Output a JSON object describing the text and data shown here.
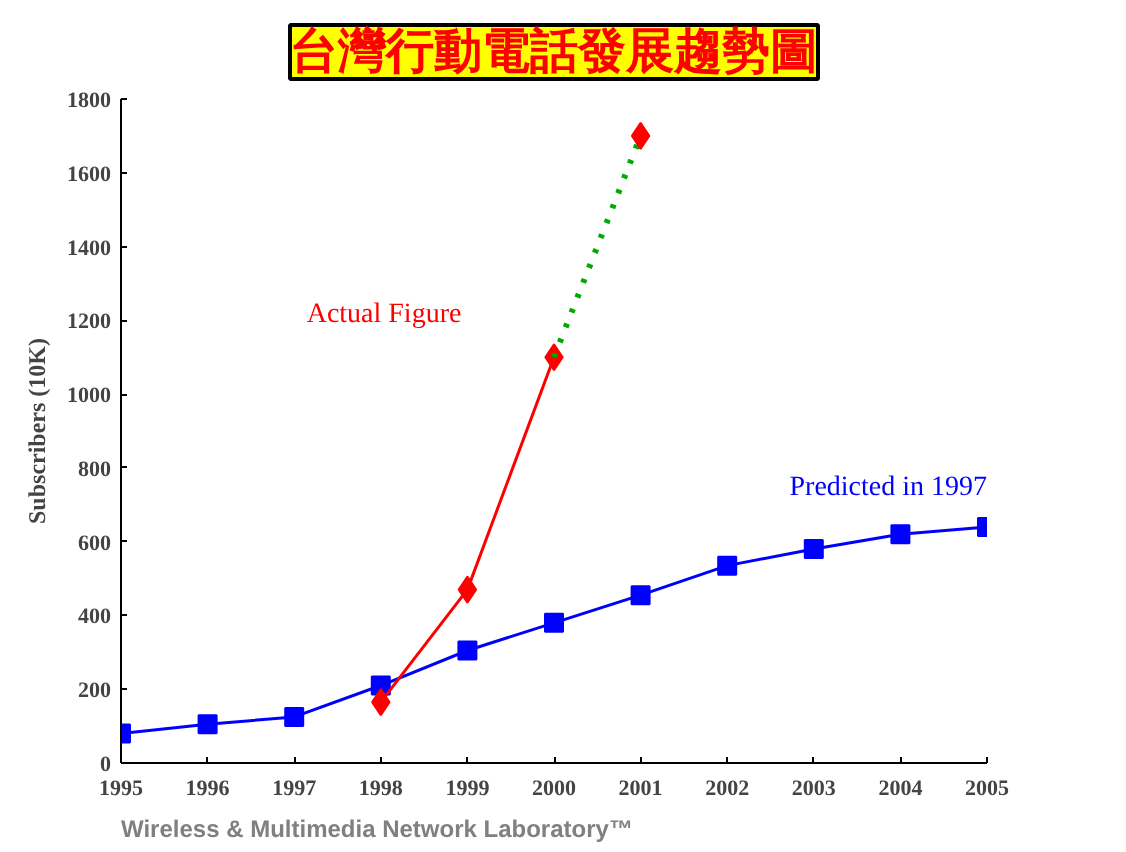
{
  "chart_data": {
    "type": "line",
    "title": "台灣行動電話發展趨勢圖",
    "ylabel": "Subscribers (10K)",
    "x": [
      1995,
      1996,
      1997,
      1998,
      1999,
      2000,
      2001,
      2002,
      2003,
      2004,
      2005
    ],
    "series": [
      {
        "name": "Predicted in 1997",
        "color": "#0000ff",
        "marker": "square",
        "values": [
          80,
          105,
          125,
          210,
          305,
          380,
          455,
          535,
          580,
          620,
          640
        ]
      },
      {
        "name": "Actual Figure",
        "color": "#ff0000",
        "marker": "diamond",
        "values": [
          null,
          null,
          null,
          165,
          470,
          1100,
          null,
          null,
          null,
          null,
          null
        ]
      },
      {
        "color": "#00aa00",
        "line_style": "dotted",
        "marker": "none",
        "values": [
          null,
          null,
          null,
          null,
          null,
          1100,
          1700,
          null,
          null,
          null,
          null
        ]
      },
      {
        "color": "#ff0000",
        "type": "scatter",
        "marker": "diamond",
        "values": [
          null,
          null,
          null,
          null,
          null,
          null,
          1700,
          null,
          null,
          null,
          null
        ]
      }
    ],
    "xlim": [
      1995,
      2005
    ],
    "xticks": [
      1995,
      1996,
      1997,
      1998,
      1999,
      2000,
      2001,
      2002,
      2003,
      2004,
      2005
    ],
    "ylim": [
      0,
      1800
    ],
    "yticks": [
      0,
      200,
      400,
      600,
      800,
      1000,
      1200,
      1400,
      1600,
      1800
    ],
    "grid": false,
    "legend": false,
    "annotations": [
      "Wireless & Multimedia Network Laboratory™"
    ]
  }
}
